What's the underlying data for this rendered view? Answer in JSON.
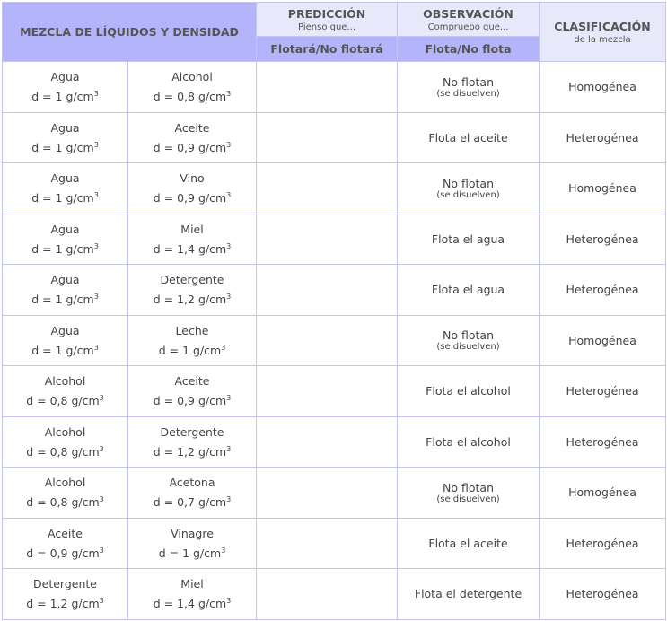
{
  "header": {
    "mezcla": "MEZCLA DE LÍQUIDOS Y DENSIDAD",
    "prediccion": "PREDICCIÓN",
    "prediccion_sub": "Pienso que...",
    "prediccion_col": "Flotará/No flotará",
    "observacion": "OBSERVACIÓN",
    "observacion_sub": "Compruebo que...",
    "observacion_col": "Flota/No flota",
    "clasificacion": "CLASIFICACIÓN",
    "clasificacion_sub": "de la mezcla"
  },
  "colors": {
    "header_dark": "#b4b4fa",
    "header_light": "#e8e8fb",
    "border": "#c4c4f0"
  },
  "rows": [
    {
      "l1": "Agua",
      "d1": "d = 1 g/cm",
      "l2": "Alcohol",
      "d2": "d = 0,8 g/cm",
      "prediccion": "",
      "obs": "No flotan",
      "note": "(se disuelven)",
      "clase": "Homogénea"
    },
    {
      "l1": "Agua",
      "d1": "d = 1 g/cm",
      "l2": "Aceite",
      "d2": "d = 0,9 g/cm",
      "prediccion": "",
      "obs": "Flota el aceite",
      "note": "",
      "clase": "Heterogénea"
    },
    {
      "l1": "Agua",
      "d1": "d = 1 g/cm",
      "l2": "Vino",
      "d2": "d = 0,9 g/cm",
      "prediccion": "",
      "obs": "No flotan",
      "note": "(se disuelven)",
      "clase": "Homogénea"
    },
    {
      "l1": "Agua",
      "d1": "d = 1 g/cm",
      "l2": "Miel",
      "d2": "d = 1,4 g/cm",
      "prediccion": "",
      "obs": "Flota el agua",
      "note": "",
      "clase": "Heterogénea"
    },
    {
      "l1": "Agua",
      "d1": "d = 1 g/cm",
      "l2": "Detergente",
      "d2": "d = 1,2 g/cm",
      "prediccion": "",
      "obs": "Flota el agua",
      "note": "",
      "clase": "Heterogénea"
    },
    {
      "l1": "Agua",
      "d1": "d = 1 g/cm",
      "l2": "Leche",
      "d2": "d = 1 g/cm",
      "prediccion": "",
      "obs": "No flotan",
      "note": "(se disuelven)",
      "clase": "Homogénea"
    },
    {
      "l1": "Alcohol",
      "d1": "d = 0,8 g/cm",
      "l2": "Aceite",
      "d2": "d = 0,9 g/cm",
      "prediccion": "",
      "obs": "Flota el alcohol",
      "note": "",
      "clase": "Heterogénea"
    },
    {
      "l1": "Alcohol",
      "d1": "d = 0,8 g/cm",
      "l2": "Detergente",
      "d2": "d = 1,2 g/cm",
      "prediccion": "",
      "obs": "Flota el alcohol",
      "note": "",
      "clase": "Heterogénea"
    },
    {
      "l1": "Alcohol",
      "d1": "d = 0,8 g/cm",
      "l2": "Acetona",
      "d2": "d = 0,7 g/cm",
      "prediccion": "",
      "obs": "No flotan",
      "note": "(se disuelven)",
      "clase": "Homogénea"
    },
    {
      "l1": "Aceite",
      "d1": "d = 0,9 g/cm",
      "l2": "Vinagre",
      "d2": "d = 1 g/cm",
      "prediccion": "",
      "obs": "Flota el aceite",
      "note": "",
      "clase": "Heterogénea"
    },
    {
      "l1": "Detergente",
      "d1": "d = 1,2 g/cm",
      "l2": "Miel",
      "d2": "d = 1,4 g/cm",
      "prediccion": "",
      "obs": "Flota el detergente",
      "note": "",
      "clase": "Heterogénea"
    }
  ],
  "unit_exponent": "3"
}
